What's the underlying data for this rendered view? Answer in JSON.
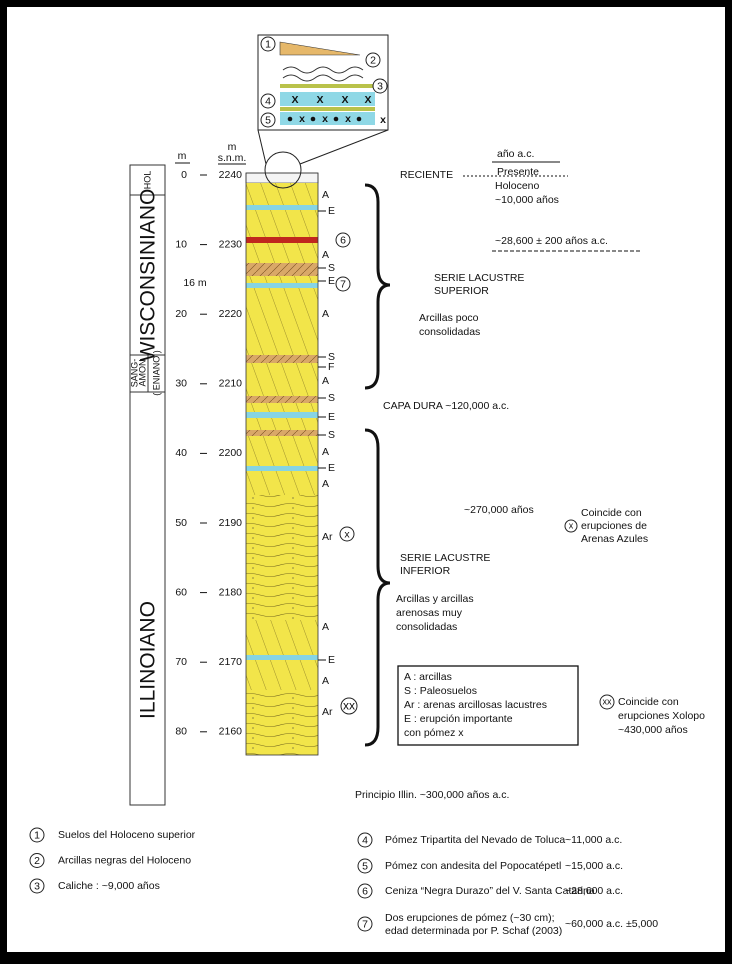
{
  "inset": {
    "markers": [
      "1",
      "2",
      "3",
      "4",
      "5"
    ],
    "x_mark": "X",
    "x_small": "x"
  },
  "scale": {
    "depth_unit": "m",
    "elev_unit": "m",
    "elev_ref": "s.n.m.",
    "depths": [
      0,
      10,
      20,
      30,
      40,
      50,
      60,
      70,
      80
    ],
    "elevations": [
      2240,
      2230,
      2220,
      2210,
      2200,
      2190,
      2180,
      2170,
      2160
    ],
    "thickness": "16 m"
  },
  "eras": {
    "holoceno": "HOL",
    "wisconsin": "WISCONSINIANO",
    "sangamon_1": "SANG-",
    "sangamon_2": "AMON",
    "sangamon_3": "( ENIANO )",
    "illinoiano": "ILLINOIANO"
  },
  "layer_labels": [
    "A",
    "E",
    "6",
    "A",
    "S",
    "E",
    "7",
    "A",
    "S",
    "F",
    "A",
    "S",
    "E",
    "S",
    "A",
    "E",
    "A",
    "Ar",
    "x",
    "A",
    "E",
    "A",
    "Ar",
    "xx"
  ],
  "annotations": {
    "age_header": "año a.c.",
    "reciente": "RECIENTE",
    "presente": "Presente",
    "holoceno": "Holoceno",
    "holoceno_age": "~10,000 años",
    "ash_age": "~28,600 ± 200 años a.c.",
    "upper_series": [
      "SERIE LACUSTRE",
      "SUPERIOR"
    ],
    "upper_desc": [
      "Arcillas poco",
      "consolidadas"
    ],
    "capa_dura": "CAPA DURA ~120,000 a.c.",
    "age_270": "~270,000 años",
    "arenas_azules": [
      "Coincide con",
      "erupciones de",
      "Arenas Azules"
    ],
    "lower_series": [
      "SERIE LACUSTRE",
      "INFERIOR"
    ],
    "lower_desc": [
      "Arcillas y arcillas",
      "arenosas muy",
      "consolidadas"
    ],
    "xolopo": [
      "Coincide con",
      "erupciones Xolopo",
      "~430,000 años"
    ],
    "principio": "Principio Illin. ~300,000 años a.c."
  },
  "legend": {
    "lines": [
      "A : arcillas",
      "S : Paleosuelos",
      "Ar : arenas arcillosas lacustres",
      "E : erupción importante",
      "con pómez x"
    ]
  },
  "notes": {
    "left": [
      {
        "number": "1",
        "text": "Suelos del Holoceno superior"
      },
      {
        "number": "2",
        "text": "Arcillas negras del Holoceno"
      },
      {
        "number": "3",
        "text": "Caliche : ~9,000 años"
      }
    ],
    "right": [
      {
        "number": "4",
        "lines": [
          "Pómez Tripartita del Nevado de Toluca"
        ],
        "date": "~11,000 a.c."
      },
      {
        "number": "5",
        "lines": [
          "Pómez con andesita del Popocatépetl"
        ],
        "date": "~15,000 a.c."
      },
      {
        "number": "6",
        "lines": [
          "Ceniza “Negra Durazo” del V. Santa Catarina"
        ],
        "date": "~28,600 a.c."
      },
      {
        "number": "7",
        "lines": [
          "Dos erupciones de pómez (~30 cm);",
          "edad determinada por P. Schaf (2003)"
        ],
        "date": "~60,000 a.c. ±5,000"
      }
    ]
  }
}
